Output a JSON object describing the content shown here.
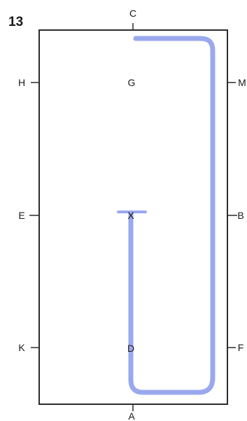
{
  "figure": {
    "number": "13"
  },
  "markers": {
    "top": "C",
    "bottom": "A",
    "left_upper": "H",
    "left_middle": "E",
    "left_lower": "K",
    "right_upper": "M",
    "right_middle": "B",
    "right_lower": "F",
    "center_upper": "G",
    "center_lower": "D",
    "start": "X"
  },
  "colors": {
    "path": "#9aa8ee",
    "outline": "#2b2b2b",
    "text": "#1a1a1a"
  }
}
